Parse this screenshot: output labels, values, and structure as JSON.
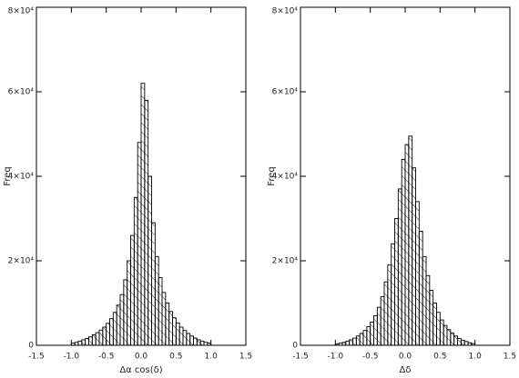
{
  "chart_data": [
    {
      "type": "histogram",
      "xlabel": "Δα cos(δ)",
      "ylabel": "Freq",
      "color": "#000000",
      "bins": [
        -1.0,
        -0.95,
        -0.9,
        -0.85,
        -0.8,
        -0.75,
        -0.7,
        -0.65,
        -0.6,
        -0.55,
        -0.5,
        -0.45,
        -0.4,
        -0.35,
        -0.3,
        -0.25,
        -0.2,
        -0.15,
        -0.1,
        -0.05,
        0.0,
        0.05,
        0.1,
        0.15,
        0.2,
        0.25,
        0.3,
        0.35,
        0.4,
        0.45,
        0.5,
        0.55,
        0.6,
        0.65,
        0.7,
        0.75,
        0.8,
        0.85,
        0.9,
        0.95,
        1.0
      ],
      "values": [
        500,
        700,
        1000,
        1300,
        1600,
        2000,
        2500,
        3000,
        3600,
        4300,
        5200,
        6300,
        7800,
        9500,
        12000,
        15500,
        20000,
        26000,
        35000,
        48000,
        62000,
        58000,
        40000,
        29000,
        21000,
        16000,
        12500,
        10000,
        8000,
        6500,
        5300,
        4300,
        3500,
        2800,
        2200,
        1700,
        1300,
        1000,
        700,
        500
      ],
      "xlim": [
        -1.5,
        1.5
      ],
      "ylim": [
        0,
        80000
      ],
      "xticks": [
        -1.5,
        {
          "value": -1,
          "label": "-1.0"
        },
        -0.5,
        {
          "value": 0,
          "label": "0.0"
        },
        0.5,
        {
          "value": 1,
          "label": "1.0"
        },
        1.5
      ],
      "yticks": [
        0,
        {
          "value": 20000,
          "label": "2×10⁴"
        },
        {
          "value": 40000,
          "label": "4×10⁴"
        },
        {
          "value": 60000,
          "label": "6×10⁴"
        },
        {
          "value": 80000,
          "label": "8×10⁴"
        }
      ]
    },
    {
      "type": "histogram",
      "xlabel": "Δδ",
      "ylabel": "Freq",
      "color": "#000000",
      "bins": [
        -1.0,
        -0.95,
        -0.9,
        -0.85,
        -0.8,
        -0.75,
        -0.7,
        -0.65,
        -0.6,
        -0.55,
        -0.5,
        -0.45,
        -0.4,
        -0.35,
        -0.3,
        -0.25,
        -0.2,
        -0.15,
        -0.1,
        -0.05,
        0.0,
        0.05,
        0.1,
        0.15,
        0.2,
        0.25,
        0.3,
        0.35,
        0.4,
        0.45,
        0.5,
        0.55,
        0.6,
        0.65,
        0.7,
        0.75,
        0.8,
        0.85,
        0.9,
        0.95,
        1.0
      ],
      "values": [
        300,
        500,
        700,
        1000,
        1300,
        1700,
        2200,
        2800,
        3500,
        4400,
        5500,
        7000,
        9000,
        11500,
        15000,
        19000,
        24000,
        30000,
        37000,
        44000,
        47500,
        49500,
        42000,
        34000,
        27000,
        21000,
        16500,
        13000,
        10000,
        7800,
        6000,
        4700,
        3700,
        2900,
        2200,
        1600,
        1200,
        900,
        600,
        400
      ],
      "xlim": [
        -1.5,
        1.5
      ],
      "ylim": [
        0,
        80000
      ],
      "xticks": [
        -1.5,
        {
          "value": -1,
          "label": "-1.0"
        },
        -0.5,
        {
          "value": 0,
          "label": "0.0"
        },
        0.5,
        {
          "value": 1,
          "label": "1.0"
        },
        1.5
      ],
      "yticks": [
        0,
        {
          "value": 20000,
          "label": "2×10⁴"
        },
        {
          "value": 40000,
          "label": "4×10⁴"
        },
        {
          "value": 60000,
          "label": "6×10⁴"
        },
        {
          "value": 80000,
          "label": "8×10⁴"
        }
      ]
    }
  ]
}
